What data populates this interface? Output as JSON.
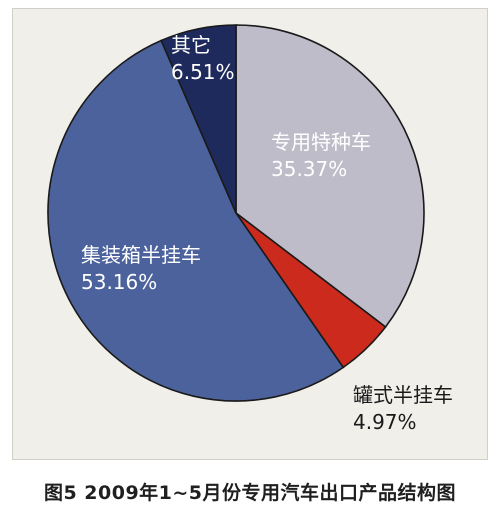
{
  "caption": "图5 2009年1~5月份专用汽车出口产品结构图",
  "chart_data": {
    "type": "pie",
    "title": "",
    "unit": "%",
    "slices": [
      {
        "label": "专用特种车",
        "value": 35.37,
        "display": "35.37%",
        "color": "#bdbcc8",
        "label_color": "#ffffff"
      },
      {
        "label": "罐式半挂车",
        "value": 4.97,
        "display": "4.97%",
        "color": "#cc2a1c",
        "label_color": "#1a1a1a"
      },
      {
        "label": "集装箱半挂车",
        "value": 53.16,
        "display": "53.16%",
        "color": "#4c629c",
        "label_color": "#ffffff"
      },
      {
        "label": "其它",
        "value": 6.51,
        "display": "6.51%",
        "color": "#1e2a5c",
        "label_color": "#ffffff"
      }
    ]
  }
}
